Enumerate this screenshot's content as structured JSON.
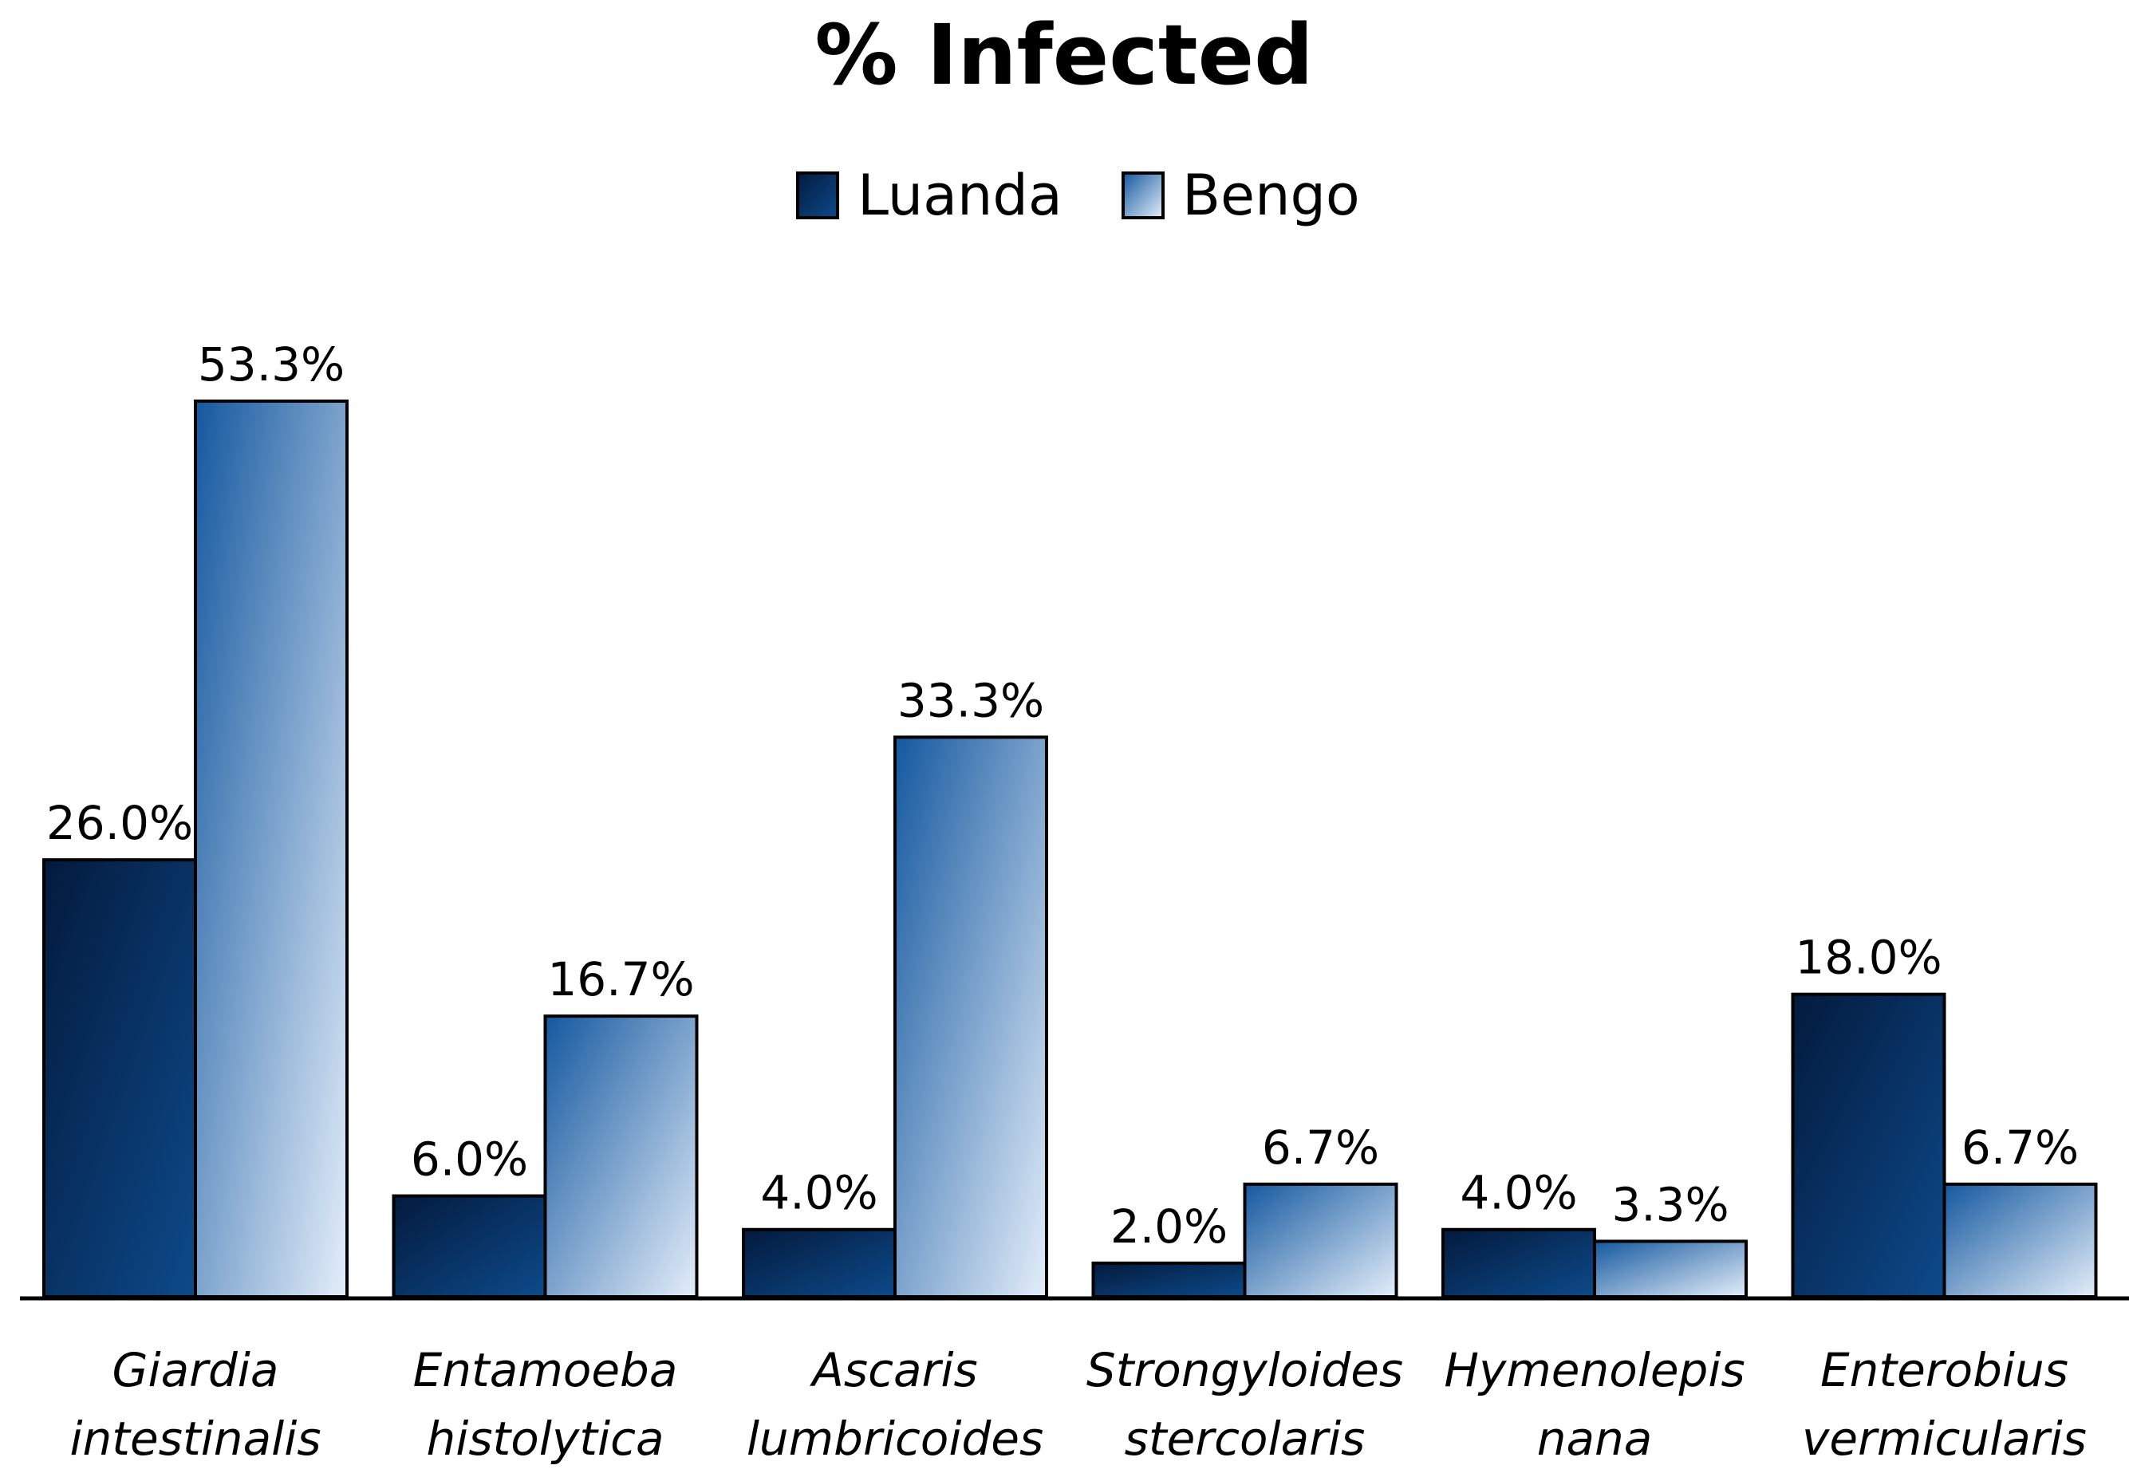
{
  "chart_data": {
    "type": "bar",
    "title": "% Infected",
    "xlabel": "",
    "ylabel": "",
    "ylim": [
      0,
      60
    ],
    "grid": false,
    "legend_position": "top-center",
    "categories": [
      [
        "Giardia",
        "intestinalis"
      ],
      [
        "Entamoeba",
        "histolytica"
      ],
      [
        "Ascaris",
        "lumbricoides"
      ],
      [
        "Strongyloides",
        "stercolaris"
      ],
      [
        "Hymenolepis",
        "nana"
      ],
      [
        "Enterobius",
        "vermicularis"
      ]
    ],
    "series": [
      {
        "name": "Luanda",
        "values": [
          26.0,
          6.0,
          4.0,
          2.0,
          4.0,
          18.0
        ],
        "labels": [
          "26.0%",
          "6.0%",
          "4.0%",
          "2.0%",
          "4.0%",
          "18.0%"
        ],
        "color_dark": "#031a3d",
        "color_light": "#0d4a8a"
      },
      {
        "name": "Bengo",
        "values": [
          53.3,
          16.7,
          33.3,
          6.7,
          3.3,
          6.7
        ],
        "labels": [
          "53.3%",
          "16.7%",
          "33.3%",
          "6.7%",
          "3.3%",
          "6.7%"
        ],
        "color_dark": "#14589f",
        "color_light": "#e4eefa"
      }
    ]
  }
}
